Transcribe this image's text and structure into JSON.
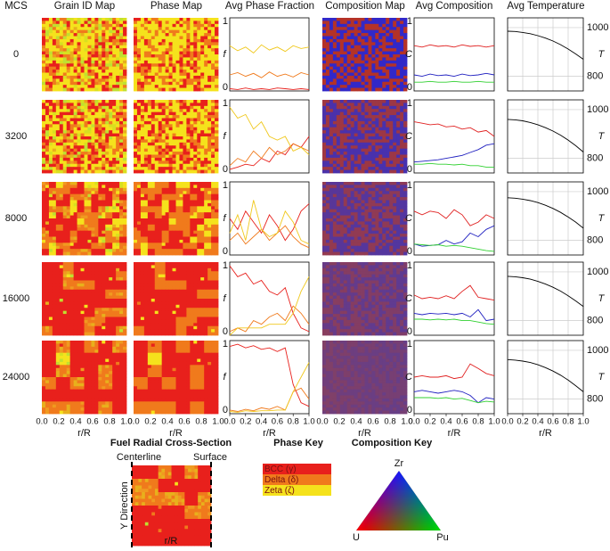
{
  "header": {
    "row_label": "MCS",
    "columns": [
      "Grain ID Map",
      "Phase Map",
      "Avg Phase Fraction",
      "Composition Map",
      "Avg Composition",
      "Avg Temperature"
    ]
  },
  "rows": [
    "0",
    "3200",
    "8000",
    "16000",
    "24000"
  ],
  "cross_section": {
    "title": "Fuel Radial Cross-Section",
    "left": "Centerline",
    "right": "Surface",
    "ylabel": "Y Direction",
    "xlabel": "r/R"
  },
  "phase_key": {
    "title": "Phase Key",
    "items": [
      {
        "label": "BCC (γ)",
        "color": "#e8201c"
      },
      {
        "label": "Delta (δ)",
        "color": "#f07a1c"
      },
      {
        "label": "Zeta (ζ)",
        "color": "#f5e21c"
      }
    ]
  },
  "composition_key": {
    "title": "Composition Key",
    "top": "Zr",
    "left": "U",
    "right": "Pu"
  },
  "chart_data": [
    {
      "type": "line",
      "ylabel": "f",
      "x": [
        0,
        0.1,
        0.2,
        0.3,
        0.4,
        0.5,
        0.6,
        0.7,
        0.8,
        0.9,
        1
      ],
      "ylim": [
        0,
        1
      ],
      "yticks": [
        0,
        1
      ],
      "series": [
        {
          "color": "#e8201c",
          "values": [
            0.03,
            0.02,
            0.04,
            0.02,
            0.03,
            0.02,
            0.04,
            0.03,
            0.02,
            0.03,
            0.02
          ]
        },
        {
          "color": "#f07a1c",
          "values": [
            0.22,
            0.25,
            0.2,
            0.24,
            0.18,
            0.26,
            0.2,
            0.23,
            0.19,
            0.25,
            0.22
          ]
        },
        {
          "color": "#f0c81c",
          "values": [
            0.62,
            0.55,
            0.6,
            0.52,
            0.63,
            0.56,
            0.6,
            0.54,
            0.62,
            0.58,
            0.6
          ]
        }
      ]
    },
    {
      "type": "line",
      "ylabel": "C",
      "x": [
        0,
        0.1,
        0.2,
        0.3,
        0.4,
        0.5,
        0.6,
        0.7,
        0.8,
        0.9,
        1
      ],
      "ylim": [
        0,
        1
      ],
      "yticks": [
        0,
        1
      ],
      "series": [
        {
          "color": "#e02020",
          "values": [
            0.62,
            0.6,
            0.63,
            0.61,
            0.62,
            0.6,
            0.63,
            0.61,
            0.62,
            0.6,
            0.62
          ]
        },
        {
          "color": "#2020c0",
          "values": [
            0.22,
            0.2,
            0.23,
            0.21,
            0.22,
            0.2,
            0.23,
            0.21,
            0.22,
            0.24,
            0.22
          ]
        },
        {
          "color": "#30d030",
          "values": [
            0.12,
            0.12,
            0.13,
            0.12,
            0.12,
            0.13,
            0.12,
            0.12,
            0.13,
            0.12,
            0.12
          ]
        }
      ]
    },
    {
      "type": "line",
      "ylabel": "T",
      "x": [
        0,
        0.1,
        0.2,
        0.3,
        0.4,
        0.5,
        0.6,
        0.7,
        0.8,
        0.9,
        1
      ],
      "ylim": [
        740,
        1040
      ],
      "yticks": [
        800,
        1000
      ],
      "grid": true,
      "series": [
        {
          "color": "#000000",
          "values": [
            985,
            984,
            980,
            975,
            967,
            957,
            945,
            930,
            912,
            892,
            870
          ]
        }
      ]
    },
    {
      "type": "line",
      "ylabel": "f",
      "x": [
        0,
        0.1,
        0.2,
        0.3,
        0.4,
        0.5,
        0.6,
        0.7,
        0.8,
        0.9,
        1
      ],
      "ylim": [
        0,
        1
      ],
      "yticks": [
        0,
        1
      ],
      "series": [
        {
          "color": "#e8201c",
          "values": [
            0.05,
            0.08,
            0.12,
            0.1,
            0.2,
            0.15,
            0.3,
            0.25,
            0.4,
            0.35,
            0.5
          ]
        },
        {
          "color": "#f07a1c",
          "values": [
            0.1,
            0.2,
            0.15,
            0.3,
            0.2,
            0.35,
            0.25,
            0.3,
            0.4,
            0.35,
            0.3
          ]
        },
        {
          "color": "#f0c81c",
          "values": [
            0.9,
            0.75,
            0.8,
            0.6,
            0.7,
            0.5,
            0.45,
            0.5,
            0.3,
            0.35,
            0.25
          ]
        }
      ]
    },
    {
      "type": "line",
      "ylabel": "C",
      "x": [
        0,
        0.1,
        0.2,
        0.3,
        0.4,
        0.5,
        0.6,
        0.7,
        0.8,
        0.9,
        1
      ],
      "ylim": [
        0,
        1
      ],
      "yticks": [
        0,
        1
      ],
      "series": [
        {
          "color": "#e02020",
          "values": [
            0.7,
            0.68,
            0.66,
            0.67,
            0.63,
            0.64,
            0.6,
            0.62,
            0.56,
            0.58,
            0.5
          ]
        },
        {
          "color": "#2020c0",
          "values": [
            0.15,
            0.16,
            0.17,
            0.18,
            0.2,
            0.22,
            0.24,
            0.28,
            0.32,
            0.38,
            0.4
          ]
        },
        {
          "color": "#30d030",
          "values": [
            0.12,
            0.12,
            0.13,
            0.12,
            0.12,
            0.11,
            0.12,
            0.1,
            0.1,
            0.08,
            0.08
          ]
        }
      ]
    },
    {
      "type": "line",
      "ylabel": "T",
      "x": [
        0,
        0.1,
        0.2,
        0.3,
        0.4,
        0.5,
        0.6,
        0.7,
        0.8,
        0.9,
        1
      ],
      "ylim": [
        740,
        1040
      ],
      "yticks": [
        800,
        1000
      ],
      "grid": true,
      "series": [
        {
          "color": "#000000",
          "values": [
            960,
            958,
            954,
            947,
            938,
            926,
            912,
            895,
            875,
            852,
            826
          ]
        }
      ]
    },
    {
      "type": "line",
      "ylabel": "f",
      "x": [
        0,
        0.1,
        0.2,
        0.3,
        0.4,
        0.5,
        0.6,
        0.7,
        0.8,
        0.9,
        1
      ],
      "ylim": [
        0,
        1
      ],
      "yticks": [
        0,
        1
      ],
      "series": [
        {
          "color": "#e8201c",
          "values": [
            0.5,
            0.35,
            0.6,
            0.45,
            0.3,
            0.55,
            0.4,
            0.2,
            0.35,
            0.6,
            0.7
          ]
        },
        {
          "color": "#f07a1c",
          "values": [
            0.2,
            0.3,
            0.15,
            0.25,
            0.35,
            0.2,
            0.3,
            0.4,
            0.25,
            0.15,
            0.1
          ]
        },
        {
          "color": "#f0c81c",
          "values": [
            0.3,
            0.55,
            0.2,
            0.75,
            0.35,
            0.25,
            0.3,
            0.6,
            0.45,
            0.2,
            0.15
          ]
        }
      ]
    },
    {
      "type": "line",
      "ylabel": "C",
      "x": [
        0,
        0.1,
        0.2,
        0.3,
        0.4,
        0.5,
        0.6,
        0.7,
        0.8,
        0.9,
        1
      ],
      "ylim": [
        0,
        1
      ],
      "yticks": [
        0,
        1
      ],
      "series": [
        {
          "color": "#e02020",
          "values": [
            0.6,
            0.55,
            0.6,
            0.58,
            0.5,
            0.62,
            0.55,
            0.4,
            0.45,
            0.55,
            0.5
          ]
        },
        {
          "color": "#2020c0",
          "values": [
            0.15,
            0.12,
            0.13,
            0.14,
            0.2,
            0.15,
            0.18,
            0.3,
            0.25,
            0.35,
            0.4
          ]
        },
        {
          "color": "#30d030",
          "values": [
            0.15,
            0.14,
            0.13,
            0.14,
            0.12,
            0.13,
            0.12,
            0.1,
            0.08,
            0.06,
            0.05
          ]
        }
      ]
    },
    {
      "type": "line",
      "ylabel": "T",
      "x": [
        0,
        0.1,
        0.2,
        0.3,
        0.4,
        0.5,
        0.6,
        0.7,
        0.8,
        0.9,
        1
      ],
      "ylim": [
        740,
        1040
      ],
      "yticks": [
        800,
        1000
      ],
      "grid": true,
      "series": [
        {
          "color": "#000000",
          "values": [
            975,
            973,
            969,
            963,
            955,
            944,
            931,
            915,
            896,
            875,
            850
          ]
        }
      ]
    },
    {
      "type": "line",
      "ylabel": "f",
      "x": [
        0,
        0.1,
        0.2,
        0.3,
        0.4,
        0.5,
        0.6,
        0.7,
        0.8,
        0.9,
        1
      ],
      "ylim": [
        0,
        1
      ],
      "yticks": [
        0,
        1
      ],
      "series": [
        {
          "color": "#e8201c",
          "values": [
            0.95,
            0.8,
            0.85,
            0.7,
            0.75,
            0.6,
            0.55,
            0.65,
            0.3,
            0.1,
            0.05
          ]
        },
        {
          "color": "#f07a1c",
          "values": [
            0.05,
            0.1,
            0.05,
            0.2,
            0.15,
            0.25,
            0.3,
            0.2,
            0.4,
            0.3,
            0.15
          ]
        },
        {
          "color": "#f0c81c",
          "values": [
            0,
            0.1,
            0.1,
            0.1,
            0.1,
            0.15,
            0.15,
            0.15,
            0.3,
            0.6,
            0.8
          ]
        }
      ]
    },
    {
      "type": "line",
      "ylabel": "C",
      "x": [
        0,
        0.1,
        0.2,
        0.3,
        0.4,
        0.5,
        0.6,
        0.7,
        0.8,
        0.9,
        1
      ],
      "ylim": [
        0,
        1
      ],
      "yticks": [
        0,
        1
      ],
      "series": [
        {
          "color": "#e02020",
          "values": [
            0.55,
            0.5,
            0.52,
            0.5,
            0.54,
            0.5,
            0.6,
            0.68,
            0.52,
            0.5,
            0.48
          ]
        },
        {
          "color": "#2020c0",
          "values": [
            0.3,
            0.28,
            0.3,
            0.29,
            0.3,
            0.28,
            0.3,
            0.25,
            0.35,
            0.2,
            0.22
          ]
        },
        {
          "color": "#30d030",
          "values": [
            0.22,
            0.22,
            0.21,
            0.22,
            0.21,
            0.22,
            0.2,
            0.2,
            0.18,
            0.16,
            0.15
          ]
        }
      ]
    },
    {
      "type": "line",
      "ylabel": "T",
      "x": [
        0,
        0.1,
        0.2,
        0.3,
        0.4,
        0.5,
        0.6,
        0.7,
        0.8,
        0.9,
        1
      ],
      "ylim": [
        740,
        1040
      ],
      "yticks": [
        800,
        1000
      ],
      "grid": true,
      "series": [
        {
          "color": "#000000",
          "values": [
            982,
            980,
            976,
            970,
            961,
            950,
            937,
            921,
            902,
            881,
            858
          ]
        }
      ]
    },
    {
      "type": "line",
      "ylabel": "f",
      "x": [
        0,
        0.1,
        0.2,
        0.3,
        0.4,
        0.5,
        0.6,
        0.7,
        0.8,
        0.9,
        1
      ],
      "ylim": [
        0,
        1
      ],
      "yticks": [
        0,
        1
      ],
      "xlabel": "r/R",
      "xticks": [
        {
          "value": 0,
          "label": "0.0"
        },
        {
          "value": 0.2,
          "label": "0.2"
        },
        {
          "value": 0.4,
          "label": "0.4"
        },
        {
          "value": 0.6,
          "label": "0.6"
        },
        {
          "value": 0.8,
          "label": "0.8"
        },
        {
          "value": 1,
          "label": "1.0"
        }
      ],
      "series": [
        {
          "color": "#e8201c",
          "values": [
            0.92,
            0.95,
            0.9,
            0.93,
            0.88,
            0.9,
            0.85,
            0.9,
            0.4,
            0.15,
            0.1
          ]
        },
        {
          "color": "#f07a1c",
          "values": [
            0.05,
            0.03,
            0.06,
            0.04,
            0.08,
            0.06,
            0.1,
            0.05,
            0.3,
            0.35,
            0.2
          ]
        },
        {
          "color": "#f0c81c",
          "values": [
            0.03,
            0.02,
            0.04,
            0.03,
            0.04,
            0.04,
            0.05,
            0.05,
            0.3,
            0.5,
            0.7
          ]
        }
      ]
    },
    {
      "type": "line",
      "ylabel": "C",
      "x": [
        0,
        0.1,
        0.2,
        0.3,
        0.4,
        0.5,
        0.6,
        0.7,
        0.8,
        0.9,
        1
      ],
      "ylim": [
        0,
        1
      ],
      "yticks": [
        0,
        1
      ],
      "xlabel": "r/R",
      "xticks": [
        {
          "value": 0,
          "label": "0.0"
        },
        {
          "value": 0.2,
          "label": "0.2"
        },
        {
          "value": 0.4,
          "label": "0.4"
        },
        {
          "value": 0.6,
          "label": "0.6"
        },
        {
          "value": 0.8,
          "label": "0.8"
        },
        {
          "value": 1,
          "label": "1.0"
        }
      ],
      "series": [
        {
          "color": "#e02020",
          "values": [
            0.5,
            0.52,
            0.5,
            0.5,
            0.52,
            0.48,
            0.5,
            0.68,
            0.62,
            0.55,
            0.52
          ]
        },
        {
          "color": "#2020c0",
          "values": [
            0.3,
            0.32,
            0.3,
            0.28,
            0.3,
            0.32,
            0.3,
            0.25,
            0.15,
            0.22,
            0.2
          ]
        },
        {
          "color": "#30d030",
          "values": [
            0.22,
            0.22,
            0.22,
            0.21,
            0.22,
            0.2,
            0.21,
            0.18,
            0.15,
            0.17,
            0.16
          ]
        }
      ]
    },
    {
      "type": "line",
      "ylabel": "T",
      "x": [
        0,
        0.1,
        0.2,
        0.3,
        0.4,
        0.5,
        0.6,
        0.7,
        0.8,
        0.9,
        1
      ],
      "ylim": [
        740,
        1040
      ],
      "yticks": [
        800,
        1000
      ],
      "grid": true,
      "xlabel": "r/R",
      "xticks": [
        {
          "value": 0,
          "label": "0.0"
        },
        {
          "value": 0.2,
          "label": "0.2"
        },
        {
          "value": 0.4,
          "label": "0.4"
        },
        {
          "value": 0.6,
          "label": "0.6"
        },
        {
          "value": 0.8,
          "label": "0.8"
        },
        {
          "value": 1,
          "label": "1.0"
        }
      ],
      "series": [
        {
          "color": "#000000",
          "values": [
            962,
            960,
            956,
            950,
            941,
            929,
            915,
            898,
            878,
            855,
            830
          ]
        }
      ]
    }
  ]
}
